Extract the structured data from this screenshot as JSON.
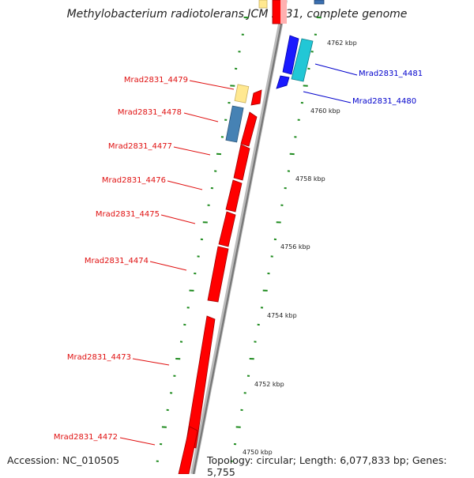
{
  "title": "Methylobacterium radiotolerans JCM 2831, complete genome",
  "footer": {
    "accession": "Accession: NC_010505",
    "summary": "Topology: circular; Length: 6,077,833 bp; Genes: 5,755"
  },
  "colors": {
    "reverse_strand_label": "#e01010",
    "forward_strand_label": "#0000cc",
    "gene_red": "#ff0000",
    "gene_blue": "#1a1aff",
    "gene_cyan": "#22c7d6",
    "gene_steelblue": "#4682b4",
    "gene_yellow": "#ffe890",
    "tick": "#1f8b1f",
    "backbone": "#888888"
  },
  "scale_labels": [
    {
      "text": "4762 kbp",
      "pos_kbp": 4762
    },
    {
      "text": "4760 kbp",
      "pos_kbp": 4760
    },
    {
      "text": "4758 kbp",
      "pos_kbp": 4758
    },
    {
      "text": "4756 kbp",
      "pos_kbp": 4756
    },
    {
      "text": "4754 kbp",
      "pos_kbp": 4754
    },
    {
      "text": "4752 kbp",
      "pos_kbp": 4752
    },
    {
      "text": "4750 kbp",
      "pos_kbp": 4750
    }
  ],
  "gene_labels": [
    {
      "text": "Mrad2831_4481",
      "strand": "forward"
    },
    {
      "text": "Mrad2831_4480",
      "strand": "forward"
    },
    {
      "text": "Mrad2831_4479",
      "strand": "reverse"
    },
    {
      "text": "Mrad2831_4478",
      "strand": "reverse"
    },
    {
      "text": "Mrad2831_4477",
      "strand": "reverse"
    },
    {
      "text": "Mrad2831_4476",
      "strand": "reverse"
    },
    {
      "text": "Mrad2831_4475",
      "strand": "reverse"
    },
    {
      "text": "Mrad2831_4474",
      "strand": "reverse"
    },
    {
      "text": "Mrad2831_4473",
      "strand": "reverse"
    },
    {
      "text": "Mrad2831_4472",
      "strand": "reverse"
    }
  ]
}
